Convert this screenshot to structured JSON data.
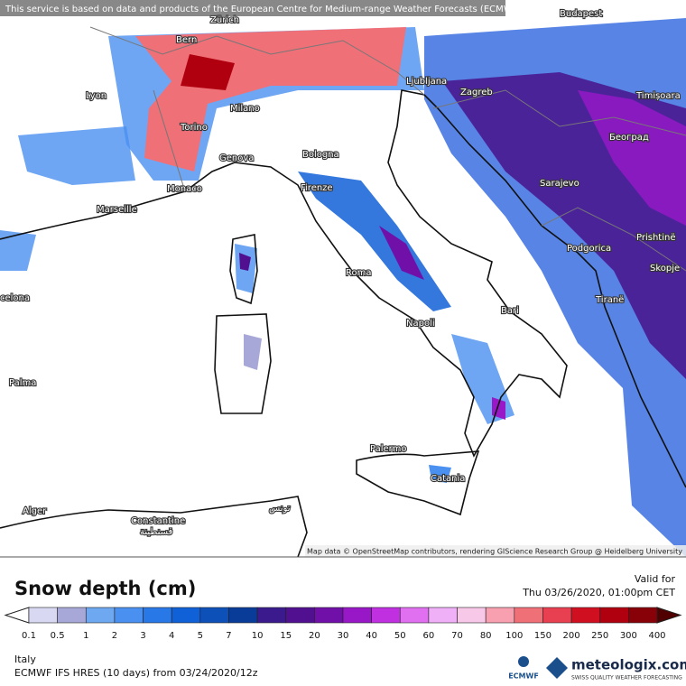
{
  "header": {
    "notice": "This service is based on data and products of the European Centre for Medium-range Weather Forecasts (ECMWF)"
  },
  "map": {
    "cities": [
      "Bern",
      "Zürich",
      "Budapest",
      "Lyon",
      "Milano",
      "Torino",
      "Ljubljana",
      "Zagreb",
      "Timișoara",
      "Београд",
      "Genova",
      "Bologna",
      "Monaco",
      "Marseille",
      "Firenze",
      "Sarajevo",
      "Podgorica",
      "Prishtinë",
      "Skopje",
      "Roma",
      "Bari",
      "Tiranë",
      "Napoli",
      "Palma",
      "celona",
      "Palermo",
      "Catania",
      "Alger",
      "Constantine",
      "قسنطينة",
      "تونس"
    ],
    "attribution": "Map data © OpenStreetMap contributors, rendering GIScience Research Group @ Heidelberg University"
  },
  "legend": {
    "title": "Snow depth (cm)",
    "valid_label": "Valid for",
    "valid_time": "Thu 03/26/2020, 01:00pm CET",
    "ticks": [
      0.1,
      0.5,
      1,
      2,
      3,
      4,
      5,
      7,
      10,
      15,
      20,
      30,
      40,
      50,
      60,
      70,
      80,
      100,
      150,
      200,
      250,
      300,
      400
    ],
    "colors": [
      "#ffffff",
      "#d8d8f2",
      "#a8a8d8",
      "#6ea8f0",
      "#4a90f0",
      "#2878e8",
      "#1060d8",
      "#0c50b8",
      "#083c98",
      "#3a1a8c",
      "#501090",
      "#7010a8",
      "#9818c8",
      "#c030e0",
      "#e070f0",
      "#f0b0f8",
      "#f8c8e8",
      "#f8a0b0",
      "#f07078",
      "#e84050",
      "#d01020",
      "#b00010",
      "#880008",
      "#500000"
    ]
  },
  "footer": {
    "region": "Italy",
    "model": "ECMWF IFS HRES (10 days) from 03/24/2020/12z",
    "ecmwf_logo": "ECMWF",
    "brand": "meteologix.com",
    "tagline": "SWISS QUALITY WEATHER FORECASTING"
  }
}
